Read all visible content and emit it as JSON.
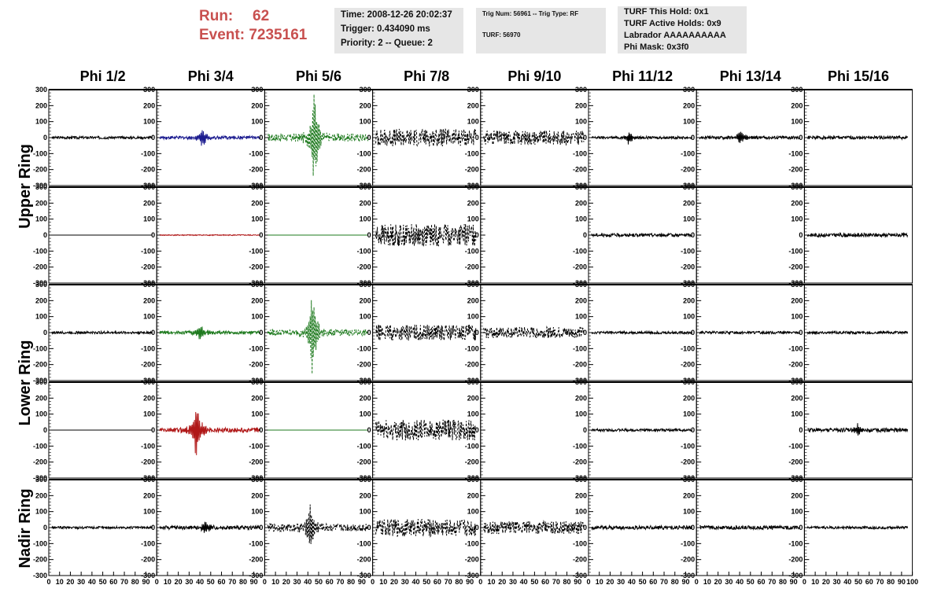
{
  "header": {
    "run_label": "Run:",
    "run_value": "62",
    "event_label": "Event:",
    "event_value": "7235161",
    "run_color": "#c8504f"
  },
  "info_box_1": {
    "time": "Time: 2008-12-26 20:02:37",
    "trigger": "Trigger: 0.434090 ms",
    "priority": "Priority: 2 -- Queue: 2"
  },
  "info_box_2": {
    "trig": "Trig Num: 56961 -- Trig Type: RF",
    "turf": "TURF: 56970"
  },
  "info_box_3": {
    "hold": "TURF This Hold: 0x1",
    "active": "TURF Active Holds: 0x9",
    "labrador": "Labrador AAAAAAAAAA",
    "phimask": "Phi Mask: 0x3f0"
  },
  "chart_data": {
    "type": "line",
    "columns": [
      "Phi 1/2",
      "Phi 3/4",
      "Phi 5/6",
      "Phi 7/8",
      "Phi 9/10",
      "Phi 11/12",
      "Phi 13/14",
      "Phi 15/16"
    ],
    "row_labels": [
      "Upper Ring",
      "Lower Ring",
      "Nadir Ring"
    ],
    "ylim": [
      -300,
      300
    ],
    "yticks": [
      "300",
      "200",
      "100",
      "0",
      "-100",
      "-200",
      "-300"
    ],
    "xlim": [
      0,
      100
    ],
    "xticks": [
      "0",
      "10",
      "20",
      "30",
      "40",
      "50",
      "60",
      "70",
      "80",
      "90",
      "100"
    ],
    "colors": {
      "default": "#000000",
      "blue": "#1b1b8f",
      "red": "#b01818",
      "green": "#1e7a1e"
    },
    "panels": [
      [
        {
          "amp": 8,
          "peak": 0,
          "color": "default",
          "dashed": false
        },
        {
          "amp": 10,
          "peak": 60,
          "peakAt": 42,
          "color": "blue",
          "dashed": false
        },
        {
          "amp": 25,
          "peak": 300,
          "peakAt": 46,
          "color": "green",
          "dashed": true
        },
        {
          "amp": 55,
          "peak": 0,
          "color": "default",
          "dashed": true
        },
        {
          "amp": 45,
          "peak": 0,
          "color": "default",
          "dashed": true
        },
        {
          "amp": 8,
          "peak": 40,
          "peakAt": 37,
          "color": "default",
          "dashed": false
        },
        {
          "amp": 10,
          "peak": 45,
          "peakAt": 40,
          "color": "default",
          "dashed": false
        },
        {
          "amp": 10,
          "peak": 0,
          "color": "default",
          "dashed": false
        }
      ],
      [
        {
          "amp": 0,
          "peak": 0,
          "color": "default",
          "dashed": false
        },
        {
          "amp": 3,
          "peak": 0,
          "color": "red",
          "dashed": false
        },
        {
          "amp": 0,
          "peak": 0,
          "color": "green",
          "dashed": false
        },
        {
          "amp": 70,
          "peak": 0,
          "color": "default",
          "dashed": true
        },
        {
          "amp": null
        },
        {
          "amp": 10,
          "peak": 0,
          "color": "default",
          "dashed": false
        },
        {
          "amp": null
        },
        {
          "amp": 12,
          "peak": 0,
          "color": "default",
          "dashed": false
        }
      ],
      [
        {
          "amp": 8,
          "peak": 0,
          "color": "default",
          "dashed": false
        },
        {
          "amp": 10,
          "peak": 50,
          "peakAt": 40,
          "color": "green",
          "dashed": false
        },
        {
          "amp": 20,
          "peak": 260,
          "peakAt": 44,
          "color": "green",
          "dashed": true
        },
        {
          "amp": 50,
          "peak": 0,
          "color": "default",
          "dashed": true
        },
        {
          "amp": 35,
          "peak": 0,
          "color": "default",
          "dashed": true
        },
        {
          "amp": 8,
          "peak": 0,
          "color": "default",
          "dashed": false
        },
        {
          "amp": 8,
          "peak": 0,
          "color": "default",
          "dashed": false
        },
        {
          "amp": 8,
          "peak": 0,
          "color": "default",
          "dashed": false
        }
      ],
      [
        {
          "amp": 0,
          "peak": 0,
          "color": "default",
          "dashed": false
        },
        {
          "amp": 15,
          "peak": 170,
          "peakAt": 36,
          "color": "red",
          "dashed": false
        },
        {
          "amp": 0,
          "peak": 0,
          "color": "green",
          "dashed": false
        },
        {
          "amp": 65,
          "peak": 0,
          "color": "default",
          "dashed": true
        },
        {
          "amp": null
        },
        {
          "amp": 8,
          "peak": 0,
          "color": "default",
          "dashed": false
        },
        {
          "amp": null
        },
        {
          "amp": 12,
          "peak": 40,
          "peakAt": 50,
          "color": "default",
          "dashed": false
        }
      ],
      [
        {
          "amp": 8,
          "peak": 0,
          "color": "default",
          "dashed": false
        },
        {
          "amp": 12,
          "peak": 40,
          "peakAt": 45,
          "color": "default",
          "dashed": false
        },
        {
          "amp": 25,
          "peak": 160,
          "peakAt": 42,
          "color": "default",
          "dashed": true
        },
        {
          "amp": 55,
          "peak": 0,
          "color": "default",
          "dashed": true
        },
        {
          "amp": 40,
          "peak": 0,
          "color": "default",
          "dashed": true
        },
        {
          "amp": 12,
          "peak": 0,
          "color": "default",
          "dashed": false
        },
        {
          "amp": 12,
          "peak": 0,
          "color": "default",
          "dashed": false
        },
        {
          "amp": 8,
          "peak": 0,
          "color": "default",
          "dashed": false
        }
      ]
    ]
  }
}
